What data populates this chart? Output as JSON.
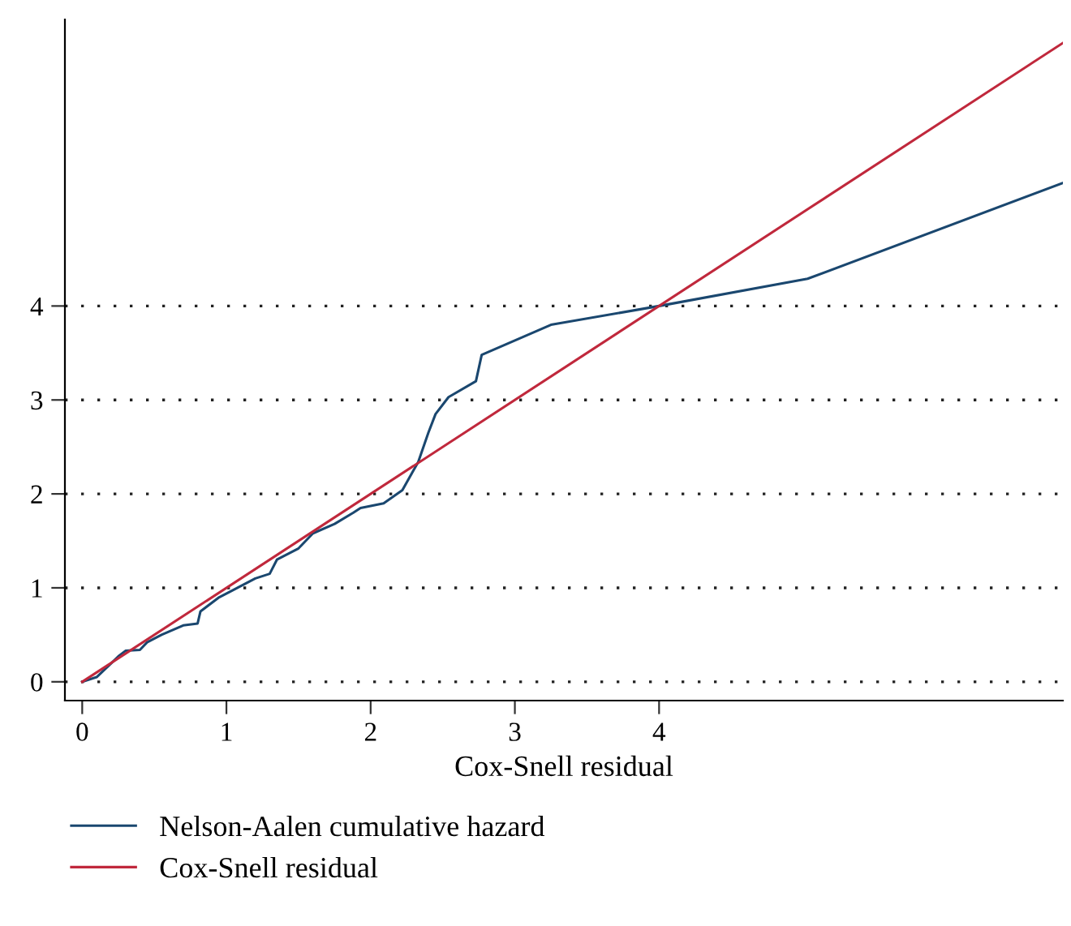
{
  "chart_data": {
    "type": "line",
    "xlabel": "Cox-Snell residual",
    "xlim": [
      -0.12,
      6.8
    ],
    "ylim": [
      -0.2,
      7.05
    ],
    "xticks": [
      0,
      1,
      2,
      3,
      4
    ],
    "yticks": [
      0,
      1,
      2,
      3,
      4
    ],
    "grid": "y",
    "legend": "bottom",
    "marker": "none",
    "line_style": "solid",
    "series": [
      {
        "name": "Nelson-Aalen cumulative hazard",
        "color": "#1a476f",
        "x": [
          0,
          0.1,
          0.19,
          0.25,
          0.3,
          0.4,
          0.45,
          0.55,
          0.7,
          0.8,
          0.82,
          0.95,
          1.05,
          1.2,
          1.3,
          1.35,
          1.5,
          1.6,
          1.75,
          1.88,
          1.93,
          2.09,
          2.22,
          2.33,
          2.4,
          2.45,
          2.54,
          2.73,
          2.77,
          3.25,
          4.0,
          5.03,
          6.8
        ],
        "values": [
          0,
          0.05,
          0.18,
          0.27,
          0.33,
          0.34,
          0.42,
          0.5,
          0.6,
          0.62,
          0.75,
          0.9,
          0.98,
          1.1,
          1.15,
          1.3,
          1.42,
          1.58,
          1.68,
          1.8,
          1.85,
          1.9,
          2.04,
          2.34,
          2.65,
          2.85,
          3.03,
          3.2,
          3.48,
          3.8,
          4.0,
          4.29,
          5.31
        ]
      },
      {
        "name": "Cox-Snell residual",
        "color": "#c0283c",
        "x": [
          0,
          6.8
        ],
        "values": [
          0,
          6.8
        ]
      }
    ]
  }
}
